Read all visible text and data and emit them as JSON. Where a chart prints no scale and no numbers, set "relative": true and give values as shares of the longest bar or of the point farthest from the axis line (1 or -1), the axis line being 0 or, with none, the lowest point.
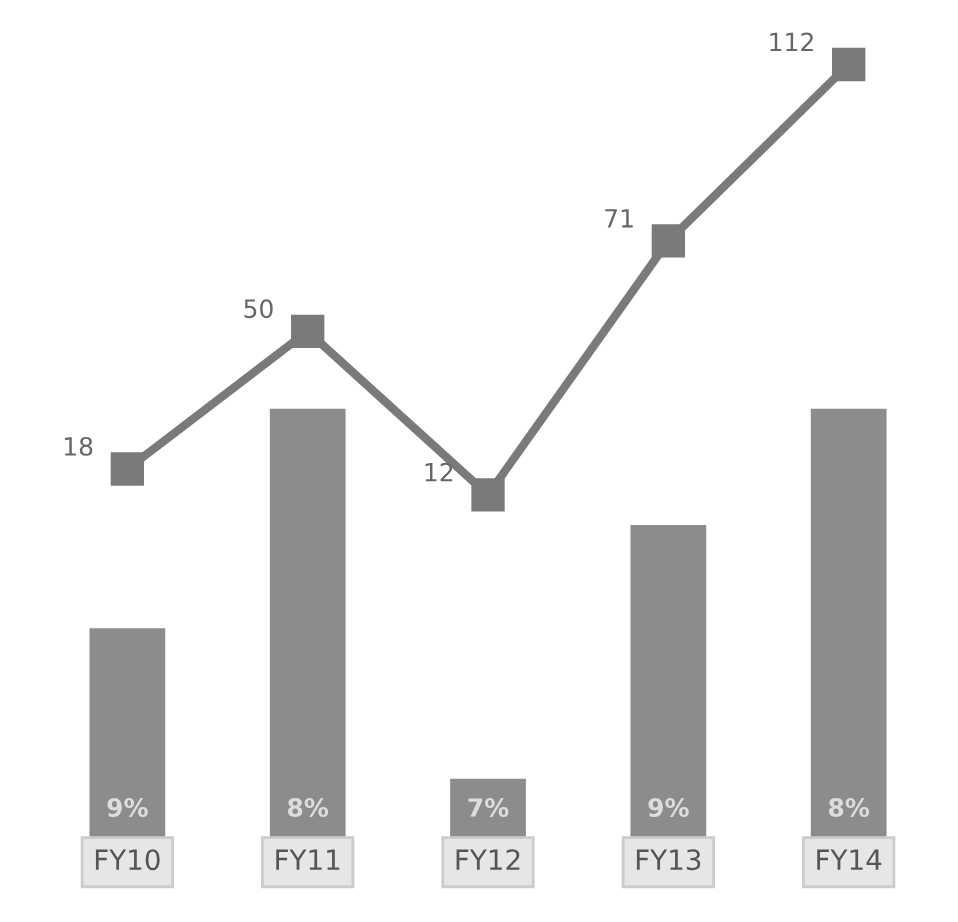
{
  "chart_data": [
    {
      "type": "bar",
      "relative": true,
      "categories": [
        "FY10",
        "FY11",
        "FY12",
        "FY13",
        "FY14"
      ],
      "color": "#8c8c8c",
      "values": [
        0.49,
        1,
        0.14,
        0.73,
        1
      ],
      "annotations": [
        "9%",
        "8%",
        "7%",
        "9%",
        "8%"
      ],
      "tick_labels": "x",
      "grid": false,
      "legend": false
    },
    {
      "type": "line",
      "categories": [
        null,
        null,
        null,
        null,
        null
      ],
      "color": "#7a7a7a",
      "marker": "square",
      "values": [
        18,
        50,
        12,
        71,
        112
      ],
      "data_labels": true,
      "tick_labels": false,
      "grid": false,
      "legend": false
    }
  ]
}
